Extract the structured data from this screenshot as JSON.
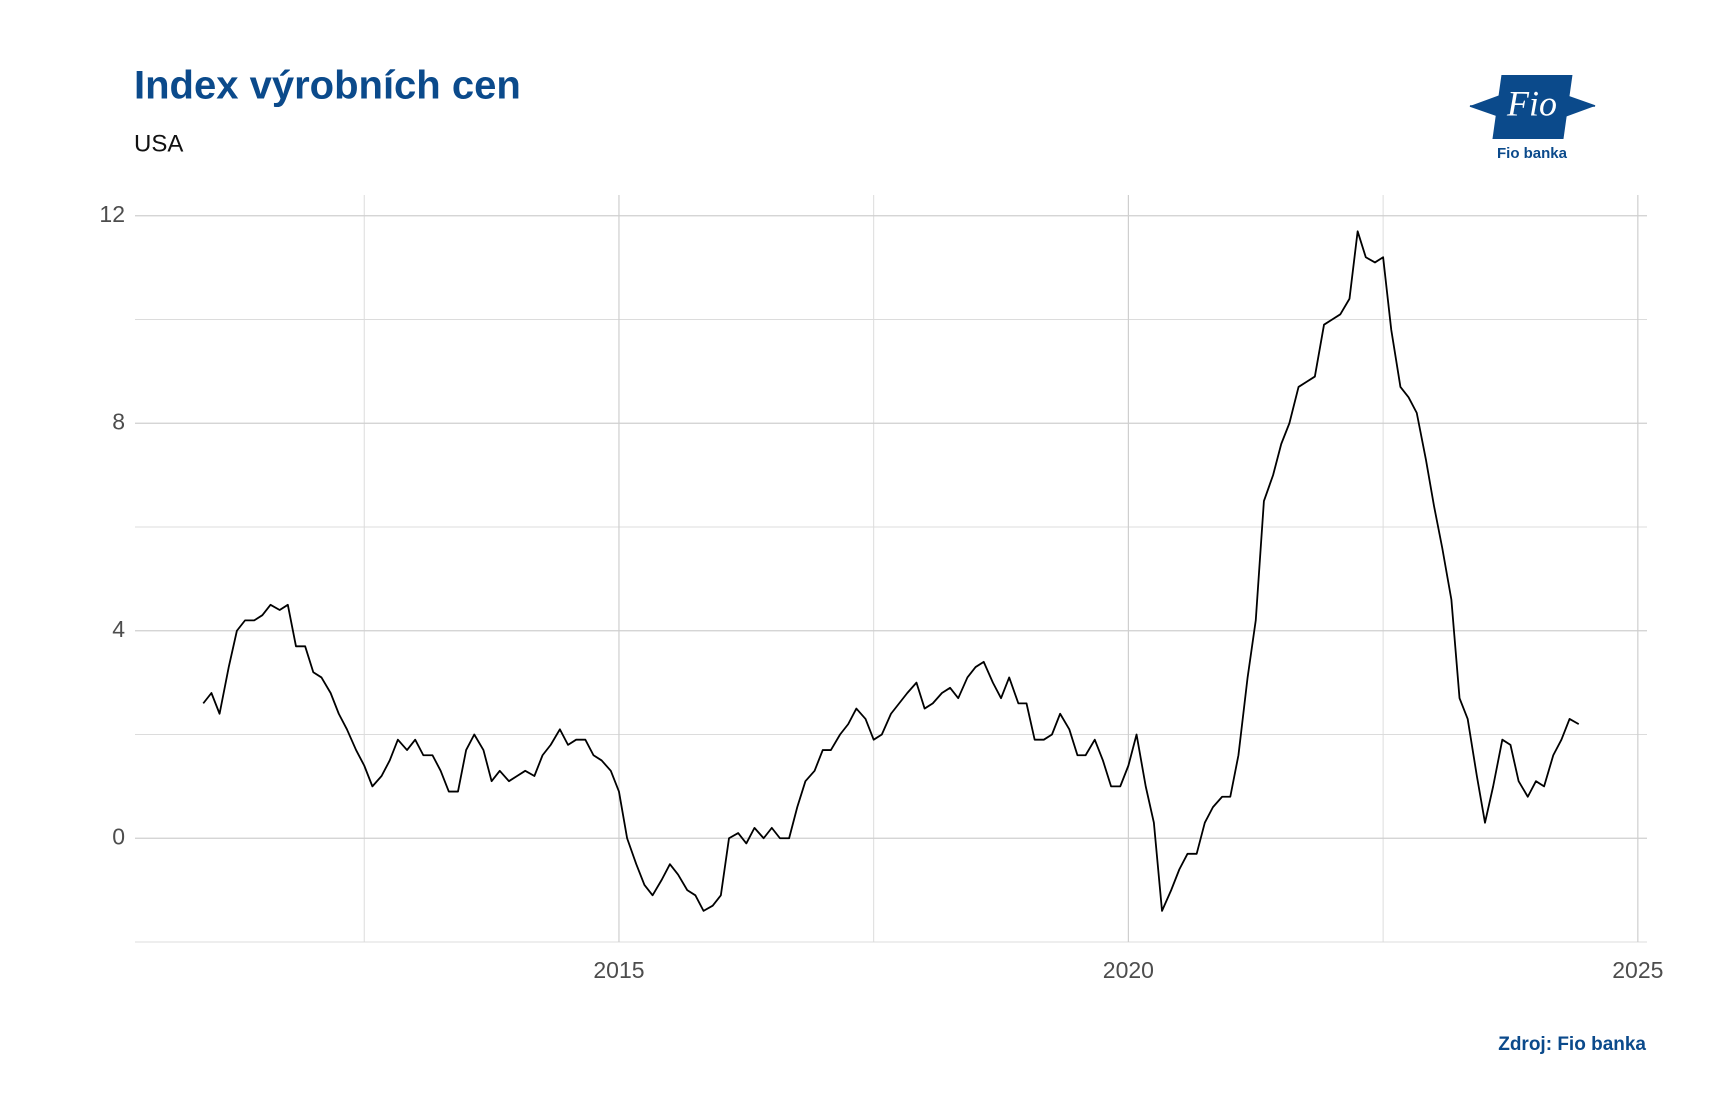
{
  "chart_data": {
    "type": "line",
    "title": "Index výrobních cen",
    "subtitle": "USA",
    "source": "Zdroj: Fio banka",
    "logo": {
      "mark": "Fio",
      "name": "Fio banka"
    },
    "x": [
      2010.92,
      2011.0,
      2011.08,
      2011.17,
      2011.25,
      2011.33,
      2011.42,
      2011.5,
      2011.58,
      2011.67,
      2011.75,
      2011.83,
      2011.92,
      2012.0,
      2012.08,
      2012.17,
      2012.25,
      2012.33,
      2012.42,
      2012.5,
      2012.58,
      2012.67,
      2012.75,
      2012.83,
      2012.92,
      2013.0,
      2013.08,
      2013.17,
      2013.25,
      2013.33,
      2013.42,
      2013.5,
      2013.58,
      2013.67,
      2013.75,
      2013.83,
      2013.92,
      2014.0,
      2014.08,
      2014.17,
      2014.25,
      2014.33,
      2014.42,
      2014.5,
      2014.58,
      2014.67,
      2014.75,
      2014.83,
      2014.92,
      2015.0,
      2015.08,
      2015.17,
      2015.25,
      2015.33,
      2015.42,
      2015.5,
      2015.58,
      2015.67,
      2015.75,
      2015.83,
      2015.92,
      2016.0,
      2016.08,
      2016.17,
      2016.25,
      2016.33,
      2016.42,
      2016.5,
      2016.58,
      2016.67,
      2016.75,
      2016.83,
      2016.92,
      2017.0,
      2017.08,
      2017.17,
      2017.25,
      2017.33,
      2017.42,
      2017.5,
      2017.58,
      2017.67,
      2017.75,
      2017.83,
      2017.92,
      2018.0,
      2018.08,
      2018.17,
      2018.25,
      2018.33,
      2018.42,
      2018.5,
      2018.58,
      2018.67,
      2018.75,
      2018.83,
      2018.92,
      2019.0,
      2019.08,
      2019.17,
      2019.25,
      2019.33,
      2019.42,
      2019.5,
      2019.58,
      2019.67,
      2019.75,
      2019.83,
      2019.92,
      2020.0,
      2020.08,
      2020.17,
      2020.25,
      2020.33,
      2020.42,
      2020.5,
      2020.58,
      2020.67,
      2020.75,
      2020.83,
      2020.92,
      2021.0,
      2021.08,
      2021.17,
      2021.25,
      2021.33,
      2021.42,
      2021.5,
      2021.58,
      2021.67,
      2021.75,
      2021.83,
      2021.92,
      2022.0,
      2022.08,
      2022.17,
      2022.25,
      2022.33,
      2022.42,
      2022.5,
      2022.58,
      2022.67,
      2022.75,
      2022.83,
      2022.92,
      2023.0,
      2023.08,
      2023.17,
      2023.25,
      2023.33,
      2023.42,
      2023.5,
      2023.58,
      2023.67,
      2023.75,
      2023.83,
      2023.92,
      2024.0,
      2024.08,
      2024.17,
      2024.25,
      2024.33,
      2024.42
    ],
    "series": [
      {
        "color": "#000000",
        "values": [
          2.6,
          2.8,
          2.4,
          3.3,
          4.0,
          4.2,
          4.2,
          4.3,
          4.5,
          4.4,
          4.5,
          3.7,
          3.7,
          3.2,
          3.1,
          2.8,
          2.4,
          2.1,
          1.7,
          1.4,
          1.0,
          1.2,
          1.5,
          1.9,
          1.7,
          1.9,
          1.6,
          1.6,
          1.3,
          0.9,
          0.9,
          1.7,
          2.0,
          1.7,
          1.1,
          1.3,
          1.1,
          1.2,
          1.3,
          1.2,
          1.6,
          1.8,
          2.1,
          1.8,
          1.9,
          1.9,
          1.6,
          1.5,
          1.3,
          0.9,
          0.0,
          -0.5,
          -0.9,
          -1.1,
          -0.8,
          -0.5,
          -0.7,
          -1.0,
          -1.1,
          -1.4,
          -1.3,
          -1.1,
          0.0,
          0.1,
          -0.1,
          0.2,
          0.0,
          0.2,
          0.0,
          0.0,
          0.6,
          1.1,
          1.3,
          1.7,
          1.7,
          2.0,
          2.2,
          2.5,
          2.3,
          1.9,
          2.0,
          2.4,
          2.6,
          2.8,
          3.0,
          2.5,
          2.6,
          2.8,
          2.9,
          2.7,
          3.1,
          3.3,
          3.4,
          3.0,
          2.7,
          3.1,
          2.6,
          2.6,
          1.9,
          1.9,
          2.0,
          2.4,
          2.1,
          1.6,
          1.6,
          1.9,
          1.5,
          1.0,
          1.0,
          1.4,
          2.0,
          1.0,
          0.3,
          -1.4,
          -1.0,
          -0.6,
          -0.3,
          -0.3,
          0.3,
          0.6,
          0.8,
          0.8,
          1.6,
          3.1,
          4.2,
          6.5,
          7.0,
          7.6,
          8.0,
          8.7,
          8.8,
          8.9,
          9.9,
          10.0,
          10.1,
          10.4,
          11.7,
          11.2,
          11.1,
          11.2,
          9.8,
          8.7,
          8.5,
          8.2,
          7.3,
          6.4,
          5.6,
          4.6,
          2.7,
          2.3,
          1.2,
          0.3,
          1.0,
          1.9,
          1.8,
          1.1,
          0.8,
          1.1,
          1.0,
          1.6,
          1.9,
          2.3,
          2.2
        ]
      }
    ],
    "xlim": [
      2010.25,
      2025.09
    ],
    "xticks": [
      2015,
      2020,
      2025
    ],
    "x_minor_ticks": [
      2012.5,
      2017.5,
      2022.5
    ],
    "ylim": [
      -2,
      12.4
    ],
    "yticks": [
      0,
      4,
      8,
      12
    ],
    "y_minor_ticks": [
      -2,
      2,
      6,
      10
    ],
    "grid": true
  }
}
